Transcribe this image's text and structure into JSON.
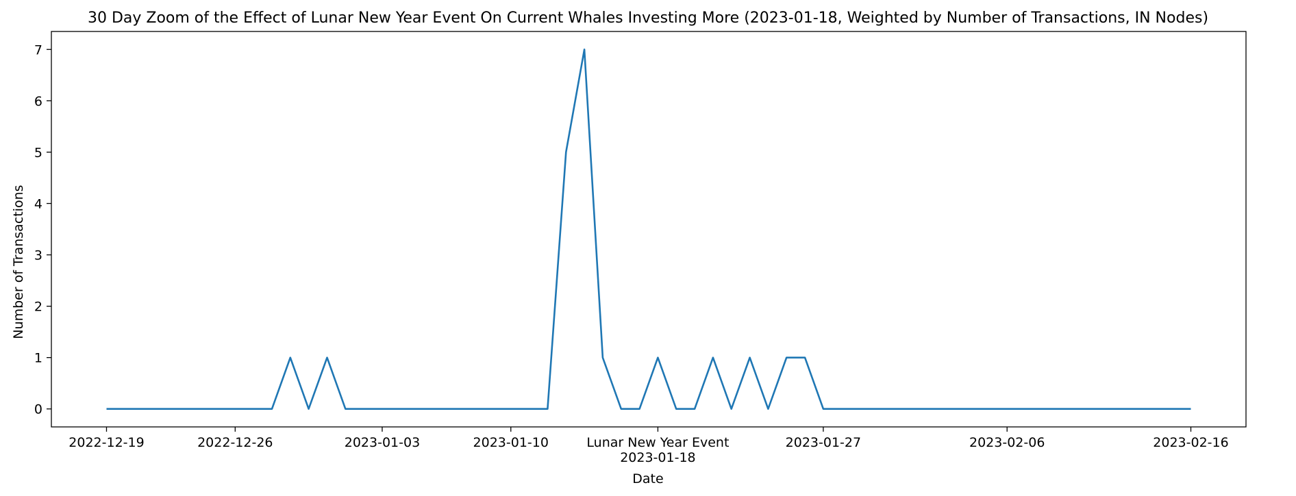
{
  "chart_data": {
    "type": "line",
    "title": "30 Day Zoom of the Effect of Lunar New Year Event On Current Whales Investing More (2023-01-18, Weighted by Number of Transactions, IN Nodes)",
    "xlabel": "Date",
    "ylabel": "Number of Transactions",
    "x_type": "date",
    "xlim": [
      "2022-12-16",
      "2023-02-19"
    ],
    "ylim": [
      -0.35,
      7.35
    ],
    "grid": false,
    "line_color": "#1f77b4",
    "x_ticks": [
      "2022-12-19",
      "2022-12-26",
      "2023-01-03",
      "2023-01-10",
      "2023-01-18",
      "2023-01-27",
      "2023-02-06",
      "2023-02-16"
    ],
    "x_tick_labels": [
      "2022-12-19",
      "2022-12-26",
      "2023-01-03",
      "2023-01-10",
      "2023-01-18",
      "2023-01-27",
      "2023-02-06",
      "2023-02-16"
    ],
    "event_label": "Lunar New Year Event",
    "event_date": "2023-01-18",
    "y_ticks": [
      0,
      1,
      2,
      3,
      4,
      5,
      6,
      7
    ],
    "y_tick_labels": [
      "0",
      "1",
      "2",
      "3",
      "4",
      "5",
      "6",
      "7"
    ],
    "series": [
      {
        "x": [
          "2022-12-19",
          "2022-12-20",
          "2022-12-21",
          "2022-12-22",
          "2022-12-23",
          "2022-12-24",
          "2022-12-25",
          "2022-12-26",
          "2022-12-27",
          "2022-12-28",
          "2022-12-29",
          "2022-12-30",
          "2022-12-31",
          "2023-01-01",
          "2023-01-02",
          "2023-01-03",
          "2023-01-04",
          "2023-01-05",
          "2023-01-06",
          "2023-01-07",
          "2023-01-08",
          "2023-01-09",
          "2023-01-10",
          "2023-01-11",
          "2023-01-12",
          "2023-01-13",
          "2023-01-14",
          "2023-01-15",
          "2023-01-16",
          "2023-01-17",
          "2023-01-18",
          "2023-01-19",
          "2023-01-20",
          "2023-01-21",
          "2023-01-22",
          "2023-01-23",
          "2023-01-24",
          "2023-01-25",
          "2023-01-26",
          "2023-01-27",
          "2023-01-28",
          "2023-01-29",
          "2023-01-30",
          "2023-01-31",
          "2023-02-01",
          "2023-02-02",
          "2023-02-03",
          "2023-02-04",
          "2023-02-05",
          "2023-02-06",
          "2023-02-07",
          "2023-02-08",
          "2023-02-09",
          "2023-02-10",
          "2023-02-11",
          "2023-02-12",
          "2023-02-13",
          "2023-02-14",
          "2023-02-15",
          "2023-02-16"
        ],
        "y": [
          0,
          0,
          0,
          0,
          0,
          0,
          0,
          0,
          0,
          0,
          1,
          0,
          1,
          0,
          0,
          0,
          0,
          0,
          0,
          0,
          0,
          0,
          0,
          0,
          0,
          5,
          7,
          1,
          0,
          0,
          1,
          0,
          0,
          1,
          0,
          1,
          0,
          1,
          1,
          0,
          0,
          0,
          0,
          0,
          0,
          0,
          0,
          0,
          0,
          0,
          0,
          0,
          0,
          0,
          0,
          0,
          0,
          0,
          0,
          0
        ]
      }
    ]
  }
}
